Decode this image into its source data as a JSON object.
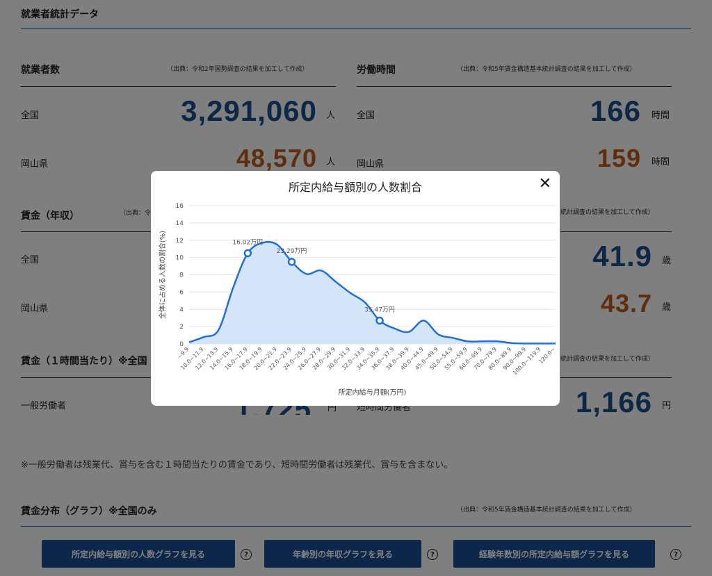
{
  "page": {
    "section_title": "就業者統計データ",
    "employees": {
      "title": "就業者数",
      "source": "（出典：令和2年国勢調査の結果を加工して作成）",
      "national_label": "全国",
      "national_value": "3,291,060",
      "okayama_label": "岡山県",
      "okayama_value": "48,570",
      "unit": "人"
    },
    "hours": {
      "title": "労働時間",
      "source": "（出典：令和5年賃金構造基本統計調査の結果を加工して作成）",
      "national_label": "全国",
      "national_value": "166",
      "okayama_label": "岡山県",
      "okayama_value": "159",
      "unit": "時間"
    },
    "wage_annual": {
      "title": "賃金（年収）",
      "source_partial": "（出典：令",
      "national_label": "全国",
      "okayama_label": "岡山県"
    },
    "age": {
      "source_partial": "統計調査の結果を加工して作成）",
      "national_value": "41.9",
      "okayama_value": "43.7",
      "unit": "歳"
    },
    "wage_hourly": {
      "title": "賃金（１時間当たり）※全国",
      "source_partial": "統計調査の結果を加工して作成）",
      "general_label": "一般労働者",
      "general_value_partial": "1,725",
      "general_unit_partial": "円",
      "short_label_partial": "短時間労働者",
      "short_value": "1,166",
      "short_unit": "円"
    },
    "note": "※一般労働者は残業代、賞与を含む１時間当たりの賃金であり、短時間労働者は残業代、賞与を含まない。",
    "distribution": {
      "title": "賃金分布（グラフ）※全国のみ",
      "source": "（出典：令和5年賃金構造基本統計調査の結果を加工して作成）",
      "buttons": [
        "所定内給与額別の人数グラフを見る",
        "年齢別の年収グラフを見る",
        "経験年数別の所定内給与額グラフを見る"
      ],
      "help_glyph": "?"
    }
  },
  "modal": {
    "title": "所定内給与額別の人数割合",
    "close_glyph": "✕"
  },
  "colors": {
    "blue_value": "#1b4f8f",
    "orange_value": "#c05a1c",
    "button_bg": "#1b4f96",
    "series_line": "#1f6fd6",
    "series_fill": "#cfe2f8"
  },
  "chart_data": {
    "type": "area",
    "xlabel": "所定内給与月額(万円)",
    "ylabel": "全体に占める人数の割合(%)",
    "ylim": [
      0,
      16
    ],
    "yticks": [
      0,
      2,
      4,
      6,
      8,
      10,
      12,
      14,
      16
    ],
    "categories": [
      "~9.9",
      "10.0~11.9",
      "12.0~13.9",
      "14.0~15.9",
      "16.0~17.9",
      "18.0~19.9",
      "20.0~21.9",
      "22.0~23.9",
      "24.0~25.9",
      "26.0~27.9",
      "28.0~29.9",
      "30.0~31.9",
      "32.0~33.9",
      "34.0~35.9",
      "36.0~37.9",
      "38.0~39.9",
      "40.0~44.9",
      "45.0~49.9",
      "50.0~54.9",
      "55.0~59.9",
      "60.0~69.9",
      "70.0~79.9",
      "80.0~89.9",
      "90.0~99.9",
      "100.0~119.9",
      "120.0~"
    ],
    "values": [
      0.2,
      0.8,
      1.6,
      6.5,
      10.5,
      11.7,
      11.5,
      9.5,
      8.1,
      8.5,
      7.2,
      5.9,
      4.8,
      2.7,
      1.8,
      1.4,
      2.7,
      1.1,
      0.7,
      0.3,
      0.3,
      0.3,
      0.1,
      0.05,
      0.05,
      0.05
    ],
    "annotations": [
      {
        "category": "16.0~17.9",
        "value": 10.5,
        "label": "16.02万円"
      },
      {
        "category": "22.0~23.9",
        "value": 9.5,
        "label": "23.29万円"
      },
      {
        "category": "34.0~35.9",
        "value": 2.7,
        "label": "35.47万円"
      }
    ],
    "grid": true
  }
}
